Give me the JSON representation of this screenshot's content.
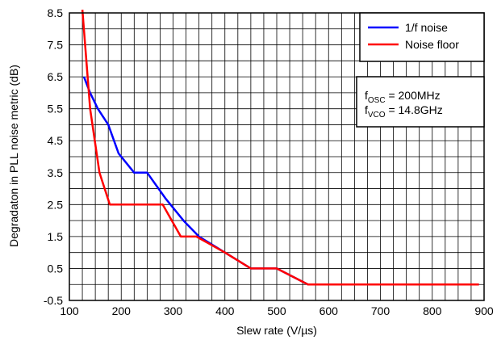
{
  "chart_data": {
    "type": "line",
    "title": "",
    "xlabel": "Slew rate (V/µs)",
    "ylabel": "Degradaton in PLL noise metric (dB)",
    "xlim": [
      100,
      900
    ],
    "ylim": [
      -0.5,
      8.5
    ],
    "xticks": [
      100,
      200,
      300,
      400,
      500,
      600,
      700,
      800,
      900
    ],
    "yticks": [
      -0.5,
      0.5,
      1.5,
      2.5,
      3.5,
      4.5,
      5.5,
      6.5,
      7.5,
      8.5
    ],
    "grid": true,
    "legend_position": "top-right",
    "series": [
      {
        "name": "1/f noise",
        "color": "#0000ff",
        "x": [
          128,
          140,
          155,
          175,
          195,
          225,
          250,
          285,
          320,
          350,
          400,
          450,
          500,
          560,
          600,
          700,
          800,
          890
        ],
        "y": [
          6.5,
          6.0,
          5.5,
          5.0,
          4.1,
          3.5,
          3.5,
          2.7,
          2.0,
          1.5,
          1.0,
          0.5,
          0.5,
          0.0,
          0.0,
          0.0,
          0.0,
          0.0
        ]
      },
      {
        "name": "Noise floor",
        "color": "#ff0000",
        "x": [
          125,
          140,
          158,
          178,
          200,
          250,
          280,
          315,
          345,
          400,
          450,
          500,
          560,
          600,
          700,
          800,
          890
        ],
        "y": [
          8.6,
          5.5,
          3.5,
          2.5,
          2.5,
          2.5,
          2.5,
          1.5,
          1.5,
          1.0,
          0.5,
          0.5,
          0.0,
          0.0,
          0.0,
          0.0,
          0.0
        ]
      }
    ],
    "annotation": {
      "line1": {
        "prefix": "f",
        "sub": "OSC",
        "suffix": " = 200MHz"
      },
      "line2": {
        "prefix": "f",
        "sub": "VCO",
        "suffix": " = 14.8GHz"
      }
    }
  }
}
